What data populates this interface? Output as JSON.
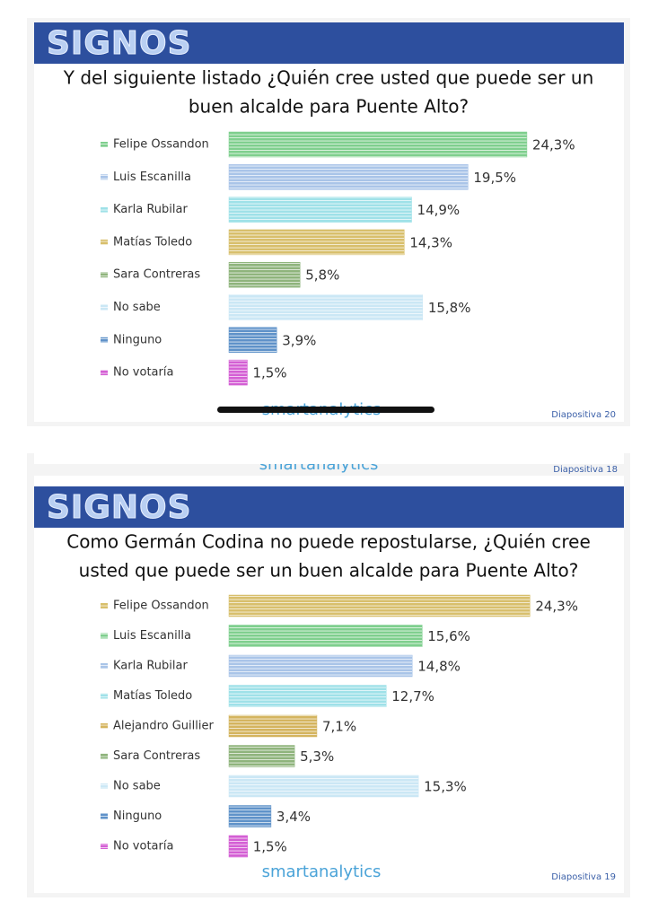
{
  "chart_data": [
    {
      "type": "bar",
      "brand": "SIGNOS",
      "title": [
        "Y del siguiente listado ¿Quién cree usted que puede ser un",
        "buen alcalde para Puente Alto?"
      ],
      "categories": [
        "Felipe Ossandon",
        "Luis Escanilla",
        "Karla Rubilar",
        "Matías Toledo",
        "Sara Contreras",
        "No sabe",
        "Ninguno",
        "No votaría"
      ],
      "values": [
        24.3,
        19.5,
        14.9,
        14.3,
        5.8,
        15.8,
        3.9,
        1.5
      ],
      "value_labels": [
        "24,3%",
        "19,5%",
        "14,9%",
        "14,3%",
        "5,8%",
        "15,8%",
        "3,9%",
        "1,5%"
      ],
      "colors": [
        "#7fcf8e",
        "#a9c4e8",
        "#9fe1e8",
        "#d8bf6c",
        "#8fb47c",
        "#cbe7f5",
        "#5f92c9",
        "#d45fd4"
      ],
      "logo": "smartanalytics",
      "slide": "Diapositiva 20"
    },
    {
      "type": "bar",
      "brand": "SIGNOS",
      "title": [
        "Como Germán Codina no puede repostularse, ¿Quién cree",
        "usted que puede ser un buen alcalde para Puente Alto?"
      ],
      "categories": [
        "Felipe Ossandon",
        "Luis Escanilla",
        "Karla Rubilar",
        "Matías Toledo",
        "Alejandro Guillier",
        "Sara Contreras",
        "No sabe",
        "Ninguno",
        "No votaría"
      ],
      "values": [
        24.3,
        15.6,
        14.8,
        12.7,
        7.1,
        5.3,
        15.3,
        3.4,
        1.5
      ],
      "value_labels": [
        "24,3%",
        "15,6%",
        "14,8%",
        "12,7%",
        "7,1%",
        "5,3%",
        "15,3%",
        "3,4%",
        "1,5%"
      ],
      "colors": [
        "#d8bf6c",
        "#7fcf8e",
        "#a9c4e8",
        "#9fe1e8",
        "#d4b45e",
        "#8fb47c",
        "#cbe7f5",
        "#5f92c9",
        "#d45fd4"
      ],
      "logo": "smartanalytics",
      "slide": "Diapositiva 19"
    }
  ],
  "previous_slide": {
    "logo": "smartanalytics",
    "slide": "Diapositiva 18"
  }
}
